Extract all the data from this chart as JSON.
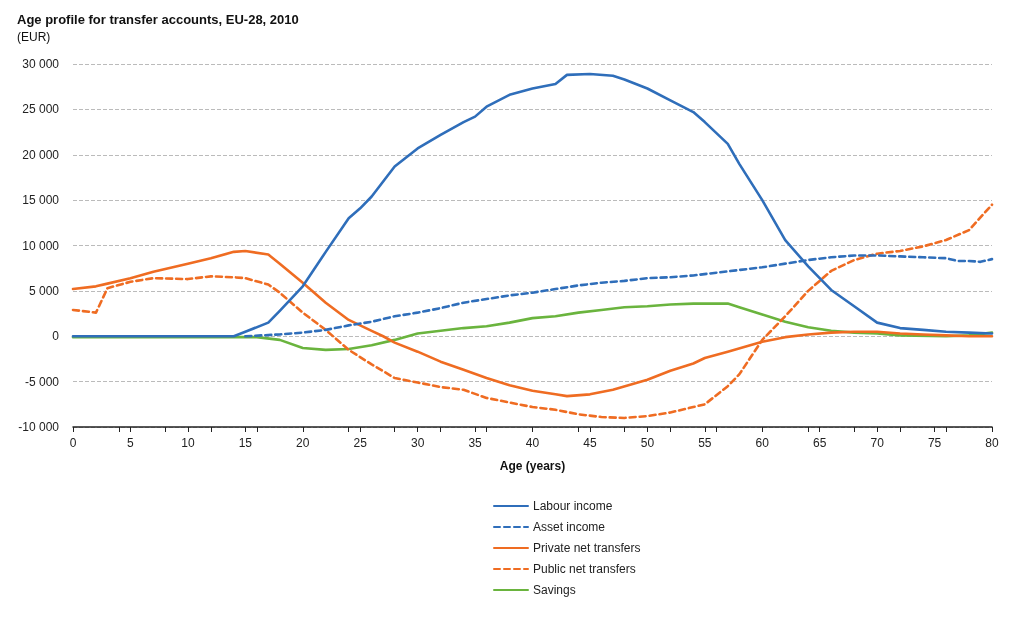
{
  "chart_data": {
    "type": "line",
    "title": "Age profile for transfer accounts, EU-28, 2010",
    "ylabel": "(EUR)",
    "xlabel": "Age (years)",
    "xlim": [
      0,
      80
    ],
    "xticks": [
      0,
      5,
      10,
      15,
      20,
      25,
      30,
      35,
      40,
      45,
      50,
      55,
      60,
      65,
      70,
      75,
      80
    ],
    "ylim": [
      -10000,
      30000
    ],
    "yticks": [
      {
        "value": -10000,
        "label": "-10 000"
      },
      {
        "value": -5000,
        "label": "-5 000"
      },
      0,
      {
        "value": 5000,
        "label": "5 000"
      },
      {
        "value": 10000,
        "label": "10 000"
      },
      {
        "value": 15000,
        "label": "15 000"
      },
      {
        "value": 20000,
        "label": "20 000"
      },
      {
        "value": 25000,
        "label": "25 000"
      },
      {
        "value": 30000,
        "label": "30 000"
      }
    ],
    "grid": "y",
    "legend": "bottom",
    "marker": "none",
    "series": [
      {
        "name": "Labour income",
        "color": "#2f6eba",
        "line_style": "solid",
        "x": [
          0,
          5,
          10,
          14,
          15,
          17,
          18,
          20,
          22,
          24,
          25,
          26,
          28,
          30,
          32,
          34,
          35,
          36,
          38,
          40,
          42,
          43,
          45,
          47,
          48,
          50,
          52,
          54,
          55,
          57,
          58,
          60,
          62,
          64,
          66,
          68,
          70,
          72,
          74,
          76,
          78,
          80
        ],
        "values": [
          0,
          0,
          0,
          0,
          500,
          1500,
          2800,
          5500,
          9300,
          13000,
          14100,
          15400,
          18700,
          20700,
          22200,
          23600,
          24200,
          25300,
          26600,
          27300,
          27800,
          28800,
          28900,
          28700,
          28300,
          27300,
          26000,
          24700,
          23600,
          21200,
          19000,
          15000,
          10600,
          7700,
          5100,
          3300,
          1500,
          900,
          700,
          500,
          400,
          300
        ]
      },
      {
        "name": "Asset income",
        "color": "#2f6eba",
        "line_style": "dashed",
        "x": [
          15,
          18,
          20,
          22,
          24,
          26,
          28,
          30,
          32,
          34,
          36,
          38,
          40,
          42,
          44,
          46,
          48,
          50,
          52,
          54,
          56,
          58,
          60,
          62,
          64,
          66,
          68,
          70,
          72,
          74,
          76,
          77,
          78,
          79,
          80
        ],
        "values": [
          0,
          200,
          400,
          700,
          1200,
          1600,
          2200,
          2600,
          3100,
          3700,
          4100,
          4500,
          4800,
          5200,
          5600,
          5900,
          6100,
          6400,
          6500,
          6700,
          7000,
          7300,
          7600,
          8000,
          8400,
          8700,
          8900,
          8900,
          8800,
          8700,
          8600,
          8300,
          8300,
          8200,
          8500
        ]
      },
      {
        "name": "Private net transfers",
        "color": "#ef6c22",
        "line_style": "solid",
        "x": [
          0,
          2,
          3,
          5,
          7,
          10,
          12,
          14,
          15,
          17,
          18,
          20,
          22,
          24,
          26,
          27,
          28,
          30,
          32,
          34,
          36,
          38,
          40,
          42,
          43,
          45,
          47,
          50,
          52,
          54,
          55,
          57,
          60,
          62,
          64,
          66,
          68,
          70,
          72,
          74,
          76,
          78,
          80
        ],
        "values": [
          5200,
          5500,
          5800,
          6400,
          7100,
          8000,
          8600,
          9300,
          9400,
          9000,
          8000,
          5900,
          3700,
          1800,
          600,
          0,
          -700,
          -1700,
          -2800,
          -3700,
          -4600,
          -5400,
          -6000,
          -6400,
          -6600,
          -6400,
          -5900,
          -4800,
          -3800,
          -3000,
          -2400,
          -1700,
          -600,
          -100,
          200,
          400,
          500,
          500,
          300,
          200,
          100,
          0,
          0
        ]
      },
      {
        "name": "Public net transfers",
        "color": "#ef6c22",
        "line_style": "dashed",
        "x": [
          0,
          2,
          3,
          5,
          7,
          10,
          12,
          14,
          15,
          17,
          18,
          20,
          22,
          24,
          26,
          28,
          30,
          32,
          34,
          36,
          38,
          40,
          42,
          44,
          46,
          48,
          50,
          52,
          54,
          55,
          57,
          58,
          60,
          62,
          64,
          66,
          68,
          70,
          72,
          74,
          76,
          78,
          80
        ],
        "values": [
          2900,
          2600,
          5300,
          6000,
          6400,
          6300,
          6600,
          6500,
          6400,
          5700,
          4800,
          2600,
          700,
          -1500,
          -3100,
          -4600,
          -5100,
          -5600,
          -5900,
          -6800,
          -7300,
          -7800,
          -8100,
          -8600,
          -8900,
          -9000,
          -8800,
          -8400,
          -7800,
          -7500,
          -5500,
          -4200,
          -400,
          2200,
          5000,
          7200,
          8400,
          9100,
          9400,
          9900,
          10600,
          11700,
          14500
        ]
      },
      {
        "name": "Savings",
        "color": "#6ab43e",
        "line_style": "solid",
        "x": [
          0,
          5,
          10,
          14,
          16,
          18,
          20,
          22,
          24,
          26,
          28,
          30,
          32,
          34,
          36,
          38,
          40,
          42,
          44,
          46,
          48,
          50,
          52,
          54,
          57,
          58,
          60,
          62,
          64,
          66,
          68,
          70,
          72,
          76,
          78,
          80
        ],
        "values": [
          -100,
          -100,
          -100,
          -100,
          -100,
          -400,
          -1300,
          -1500,
          -1400,
          -1000,
          -400,
          300,
          600,
          900,
          1100,
          1500,
          2000,
          2200,
          2600,
          2900,
          3200,
          3300,
          3500,
          3600,
          3600,
          3200,
          2400,
          1600,
          1000,
          600,
          400,
          300,
          100,
          0,
          100,
          400
        ]
      }
    ]
  }
}
